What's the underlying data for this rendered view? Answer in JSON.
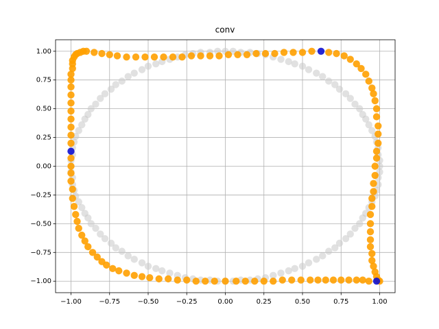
{
  "chart_data": {
    "type": "scatter",
    "title": "conv",
    "xlim": [
      -1.1,
      1.1
    ],
    "ylim": [
      -1.1,
      1.1
    ],
    "grid": true,
    "xticks": [
      {
        "value": -1,
        "label": "−1.00"
      },
      {
        "value": -0.75,
        "label": "−0.75"
      },
      {
        "value": -0.5,
        "label": "−0.50"
      },
      {
        "value": -0.25,
        "label": "−0.25"
      },
      {
        "value": 0,
        "label": "0.00"
      },
      {
        "value": 0.25,
        "label": "0.25"
      },
      {
        "value": 0.5,
        "label": "0.50"
      },
      {
        "value": 0.75,
        "label": "0.75"
      },
      {
        "value": 1,
        "label": "1.00"
      }
    ],
    "yticks": [
      {
        "value": -1,
        "label": "−1.00"
      },
      {
        "value": -0.75,
        "label": "−0.75"
      },
      {
        "value": -0.5,
        "label": "−0.50"
      },
      {
        "value": -0.25,
        "label": "−0.25"
      },
      {
        "value": 0,
        "label": "0.00"
      },
      {
        "value": 0.25,
        "label": "0.25"
      },
      {
        "value": 0.5,
        "label": "0.50"
      },
      {
        "value": 0.75,
        "label": "0.75"
      },
      {
        "value": 1,
        "label": "1.00"
      }
    ],
    "series": [
      {
        "color": "#c8c8c8",
        "x": [
          1,
          1,
          0.99,
          0.99,
          0.98,
          0.97,
          0.95,
          0.93,
          0.91,
          0.89,
          0.87,
          0.84,
          0.81,
          0.78,
          0.74,
          0.71,
          0.67,
          0.63,
          0.59,
          0.54,
          0.5,
          0.45,
          0.41,
          0.36,
          0.31,
          0.26,
          0.21,
          0.16,
          0.1,
          0.05,
          0,
          -0.05,
          -0.1,
          -0.16,
          -0.21,
          -0.26,
          -0.31,
          -0.36,
          -0.41,
          -0.45,
          -0.5,
          -0.54,
          -0.59,
          -0.63,
          -0.67,
          -0.71,
          -0.74,
          -0.78,
          -0.81,
          -0.84,
          -0.87,
          -0.89,
          -0.91,
          -0.93,
          -0.95,
          -0.97,
          -0.98,
          -0.99,
          -0.99,
          -1,
          -1,
          -1,
          -0.99,
          -0.99,
          -0.98,
          -0.97,
          -0.95,
          -0.93,
          -0.91,
          -0.89,
          -0.87,
          -0.84,
          -0.81,
          -0.78,
          -0.74,
          -0.71,
          -0.67,
          -0.63,
          -0.59,
          -0.54,
          -0.5,
          -0.45,
          -0.41,
          -0.36,
          -0.31,
          -0.26,
          -0.21,
          -0.16,
          -0.1,
          -0.05,
          0,
          0.05,
          0.1,
          0.16,
          0.21,
          0.26,
          0.31,
          0.36,
          0.41,
          0.45,
          0.5,
          0.54,
          0.59,
          0.63,
          0.67,
          0.71,
          0.74,
          0.78,
          0.81,
          0.84,
          0.87,
          0.89,
          0.91,
          0.93,
          0.95,
          0.97,
          0.98,
          0.99,
          0.99,
          1
        ],
        "y": [
          0,
          0.05,
          0.1,
          0.16,
          0.21,
          0.26,
          0.31,
          0.36,
          0.41,
          0.45,
          0.5,
          0.54,
          0.59,
          0.63,
          0.67,
          0.71,
          0.74,
          0.78,
          0.81,
          0.84,
          0.87,
          0.89,
          0.91,
          0.93,
          0.95,
          0.97,
          0.98,
          0.99,
          0.99,
          1,
          1,
          1,
          0.99,
          0.99,
          0.98,
          0.97,
          0.95,
          0.93,
          0.91,
          0.89,
          0.87,
          0.84,
          0.81,
          0.78,
          0.74,
          0.71,
          0.67,
          0.63,
          0.59,
          0.54,
          0.5,
          0.45,
          0.41,
          0.36,
          0.31,
          0.26,
          0.21,
          0.16,
          0.1,
          0.05,
          0,
          -0.05,
          -0.1,
          -0.16,
          -0.21,
          -0.26,
          -0.31,
          -0.36,
          -0.41,
          -0.45,
          -0.5,
          -0.54,
          -0.59,
          -0.63,
          -0.67,
          -0.71,
          -0.74,
          -0.78,
          -0.81,
          -0.84,
          -0.87,
          -0.89,
          -0.91,
          -0.93,
          -0.95,
          -0.97,
          -0.98,
          -0.99,
          -0.99,
          -1,
          -1,
          -1,
          -0.99,
          -0.99,
          -0.98,
          -0.97,
          -0.95,
          -0.93,
          -0.91,
          -0.89,
          -0.87,
          -0.84,
          -0.81,
          -0.78,
          -0.74,
          -0.71,
          -0.67,
          -0.63,
          -0.59,
          -0.54,
          -0.5,
          -0.45,
          -0.41,
          -0.36,
          -0.31,
          -0.26,
          -0.21,
          -0.16,
          -0.1,
          -0.05
        ]
      },
      {
        "color": "#ffa000",
        "x": [
          -0.9,
          -0.85,
          -0.8,
          -0.75,
          -0.7,
          -0.64,
          -0.58,
          -0.52,
          -0.46,
          -0.4,
          -0.34,
          -0.28,
          -0.22,
          -0.16,
          -0.1,
          -0.04,
          0.02,
          0.08,
          0.14,
          0.2,
          0.26,
          0.32,
          0.38,
          0.44,
          0.5,
          0.56,
          0.67,
          0.72,
          0.77,
          0.81,
          0.85,
          0.88,
          0.91,
          0.93,
          0.95,
          0.96,
          0.97,
          0.98,
          0.98,
          0.99,
          0.99,
          0.99,
          0.98,
          0.98,
          0.97,
          0.97,
          0.96,
          0.96,
          0.95,
          0.95,
          0.94,
          0.94,
          0.94,
          0.94,
          0.94,
          0.95,
          0.95,
          0.96,
          0.97,
          0.98,
          0.99,
          1,
          0.93,
          0.89,
          0.85,
          0.8,
          0.75,
          0.7,
          0.65,
          0.6,
          0.55,
          0.49,
          0.43,
          0.37,
          0.31,
          0.25,
          0.19,
          0.13,
          0.07,
          0,
          -0.07,
          -0.13,
          -0.19,
          -0.25,
          -0.31,
          -0.37,
          -0.43,
          -0.49,
          -0.54,
          -0.59,
          -0.64,
          -0.69,
          -0.73,
          -0.77,
          -0.8,
          -0.83,
          -0.86,
          -0.89,
          -0.91,
          -0.93,
          -0.95,
          -0.96,
          -0.97,
          -0.98,
          -0.99,
          -0.99,
          -1,
          -1,
          -1,
          -1,
          -1,
          -1,
          -1,
          -1,
          -1,
          -1,
          -1,
          -1,
          -1,
          -1,
          -0.99,
          -0.99,
          -0.99,
          -0.98,
          -0.97,
          -0.96,
          -0.94,
          -0.92
        ],
        "y": [
          1,
          0.99,
          0.98,
          0.97,
          0.96,
          0.95,
          0.95,
          0.95,
          0.95,
          0.95,
          0.95,
          0.95,
          0.96,
          0.96,
          0.96,
          0.96,
          0.97,
          0.97,
          0.97,
          0.98,
          0.98,
          0.98,
          0.99,
          0.99,
          0.99,
          1,
          0.99,
          0.98,
          0.96,
          0.93,
          0.89,
          0.85,
          0.8,
          0.74,
          0.68,
          0.63,
          0.57,
          0.5,
          0.43,
          0.35,
          0.28,
          0.2,
          0.13,
          0.07,
          0,
          -0.08,
          -0.15,
          -0.22,
          -0.28,
          -0.35,
          -0.42,
          -0.5,
          -0.57,
          -0.64,
          -0.7,
          -0.76,
          -0.82,
          -0.87,
          -0.92,
          -0.96,
          -0.99,
          -1,
          -1,
          -0.99,
          -0.99,
          -0.99,
          -0.99,
          -0.99,
          -0.99,
          -0.99,
          -0.99,
          -0.99,
          -0.99,
          -0.99,
          -1,
          -1,
          -1,
          -1,
          -1,
          -1,
          -1,
          -1,
          -1,
          -0.99,
          -0.99,
          -0.98,
          -0.98,
          -0.97,
          -0.96,
          -0.95,
          -0.93,
          -0.91,
          -0.89,
          -0.86,
          -0.83,
          -0.79,
          -0.75,
          -0.7,
          -0.65,
          -0.6,
          -0.54,
          -0.48,
          -0.42,
          -0.35,
          -0.28,
          -0.2,
          -0.13,
          -0.06,
          0,
          0.07,
          0.2,
          0.27,
          0.34,
          0.41,
          0.48,
          0.55,
          0.62,
          0.69,
          0.75,
          0.8,
          0.85,
          0.89,
          0.92,
          0.95,
          0.97,
          0.98,
          0.99,
          1
        ]
      },
      {
        "color": "#1010d0",
        "x": [
          0.62,
          -1,
          0.98
        ],
        "y": [
          1,
          0.13,
          -1
        ]
      }
    ]
  }
}
